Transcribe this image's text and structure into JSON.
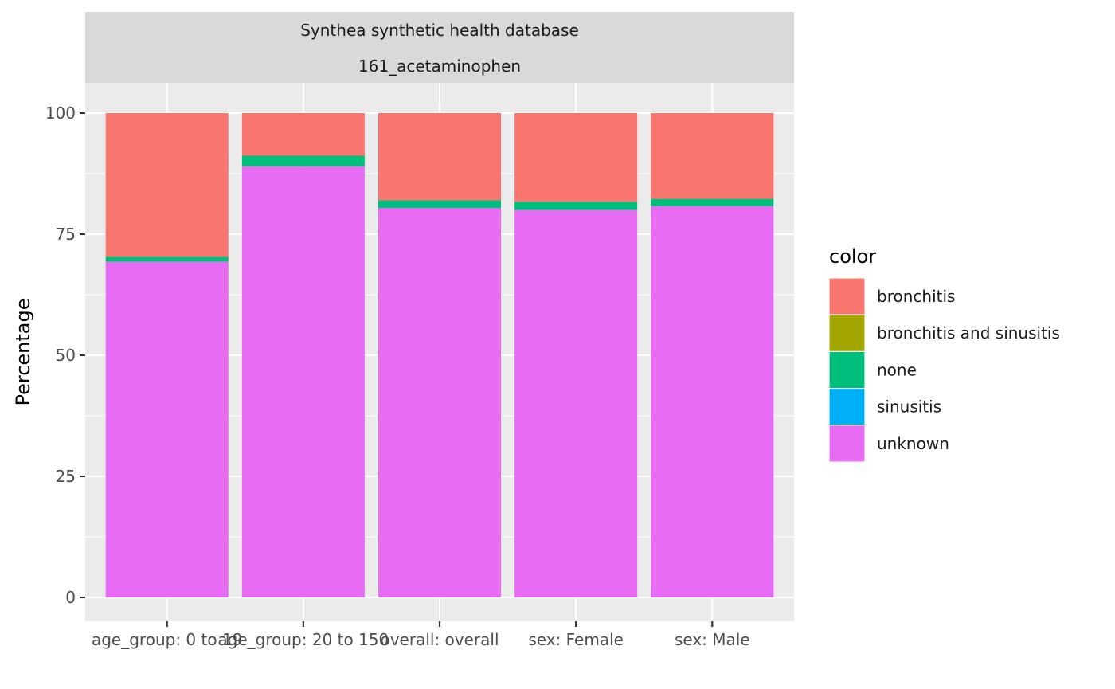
{
  "chart_data": {
    "type": "bar",
    "stacked": true,
    "strip": {
      "line1": "Synthea synthetic health database",
      "line2": "161_acetaminophen"
    },
    "xlabel": "",
    "ylabel": "Percentage",
    "ylim": [
      0,
      100
    ],
    "yticks": [
      0,
      25,
      50,
      75,
      100
    ],
    "grid": true,
    "legend_position": "right",
    "legend_title": "color",
    "categories": [
      "age_group: 0 to 19",
      "age_group: 20 to 150",
      "overall: overall",
      "sex: Female",
      "sex: Male"
    ],
    "series": [
      {
        "name": "unknown",
        "color": "#E76BF3",
        "values": [
          69.3,
          89.0,
          80.4,
          80.0,
          80.8
        ]
      },
      {
        "name": "sinusitis",
        "color": "#00B0F6",
        "values": [
          0,
          0,
          0,
          0,
          0
        ]
      },
      {
        "name": "none",
        "color": "#00BF7D",
        "values": [
          1.0,
          2.2,
          1.6,
          1.7,
          1.5
        ]
      },
      {
        "name": "bronchitis and sinusitis",
        "color": "#A3A500",
        "values": [
          0,
          0,
          0,
          0,
          0
        ]
      },
      {
        "name": "bronchitis",
        "color": "#F8766D",
        "values": [
          29.7,
          8.8,
          18.0,
          18.3,
          17.7
        ]
      }
    ],
    "legend_order": [
      "bronchitis",
      "bronchitis and sinusitis",
      "none",
      "sinusitis",
      "unknown"
    ]
  }
}
